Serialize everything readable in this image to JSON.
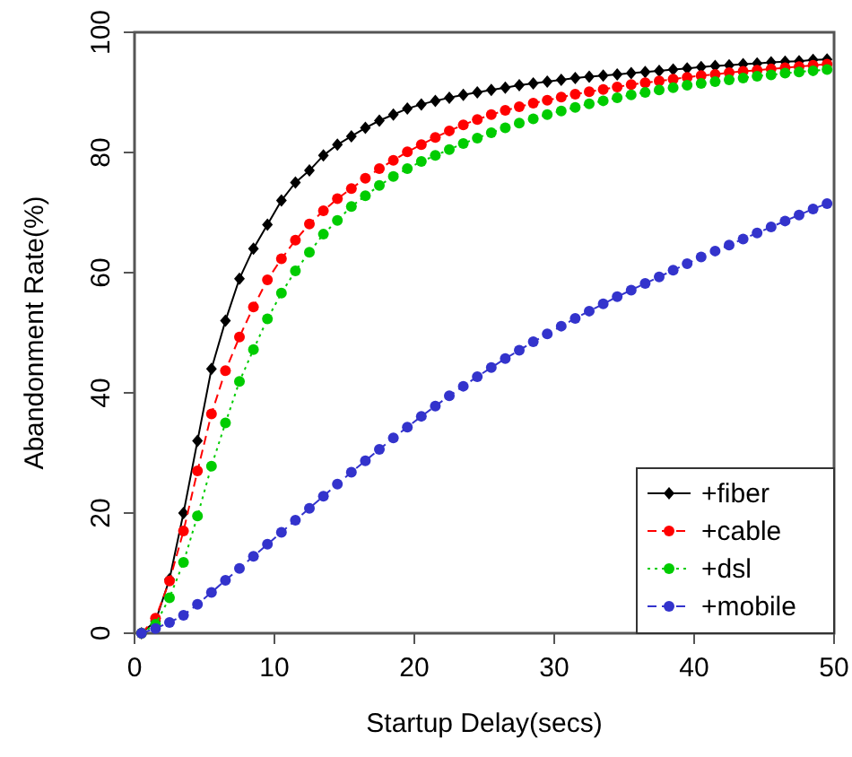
{
  "chart_data": {
    "type": "line",
    "xlabel": "Startup Delay(secs)",
    "ylabel": "Abandonment Rate(%)",
    "x": [
      0.5,
      1.5,
      2.5,
      3.5,
      4.5,
      5.5,
      6.5,
      7.5,
      8.5,
      9.5,
      10.5,
      11.5,
      12.5,
      13.5,
      14.5,
      15.5,
      16.5,
      17.5,
      18.5,
      19.5,
      20.5,
      21.5,
      22.5,
      23.5,
      24.5,
      25.5,
      26.5,
      27.5,
      28.5,
      29.5,
      30.5,
      31.5,
      32.5,
      33.5,
      34.5,
      35.5,
      36.5,
      37.5,
      38.5,
      39.5,
      40.5,
      41.5,
      42.5,
      43.5,
      44.5,
      45.5,
      46.5,
      47.5,
      48.5,
      49.5
    ],
    "series": [
      {
        "name": "+fiber",
        "color": "#000000",
        "marker": "diamond",
        "line_style": "solid",
        "values": [
          0,
          2,
          9,
          20,
          32,
          44,
          52,
          59,
          64,
          68,
          72,
          75,
          77,
          79.5,
          81.3,
          82.7,
          84.1,
          85.3,
          86.3,
          87.3,
          88,
          88.6,
          89.1,
          89.6,
          90,
          90.4,
          90.8,
          91.2,
          91.5,
          91.8,
          92.1,
          92.4,
          92.6,
          92.8,
          93,
          93.2,
          93.4,
          93.6,
          93.8,
          94,
          94.2,
          94.4,
          94.5,
          94.7,
          94.8,
          95,
          95.1,
          95.2,
          95.4,
          95.5
        ]
      },
      {
        "name": "+cable",
        "color": "#ff0000",
        "marker": "circle",
        "line_style": "dashed",
        "values": [
          0,
          2.5,
          8.7,
          17,
          27,
          36.5,
          43.7,
          49.3,
          54.3,
          58.8,
          62.3,
          65.4,
          68.1,
          70.3,
          72.3,
          74,
          75.7,
          77.3,
          78.7,
          80.1,
          81.3,
          82.5,
          83.6,
          84.6,
          85.5,
          86.3,
          87,
          87.6,
          88.2,
          88.7,
          89.2,
          89.7,
          90.1,
          90.5,
          90.9,
          91.3,
          91.6,
          91.9,
          92.2,
          92.5,
          92.8,
          93,
          93.3,
          93.5,
          93.7,
          93.9,
          94.1,
          94.3,
          94.5,
          94.7
        ]
      },
      {
        "name": "+dsl",
        "color": "#00cc00",
        "marker": "circle",
        "line_style": "dotted",
        "values": [
          0,
          1.5,
          5.9,
          11.8,
          19.5,
          27.8,
          35,
          41.9,
          47.2,
          52.3,
          56.6,
          60.3,
          63.4,
          66.4,
          68.7,
          71,
          72.8,
          74.5,
          76,
          77.3,
          78.5,
          79.5,
          80.5,
          81.5,
          82.4,
          83.3,
          84.1,
          84.9,
          85.6,
          86.3,
          86.9,
          87.5,
          88.1,
          88.6,
          89.1,
          89.6,
          90,
          90.4,
          90.8,
          91.2,
          91.5,
          91.8,
          92.1,
          92.4,
          92.7,
          92.9,
          93.2,
          93.4,
          93.6,
          93.8
        ]
      },
      {
        "name": "+mobile",
        "color": "#3333cc",
        "marker": "circle",
        "line_style": "dashed",
        "values": [
          0,
          0.8,
          1.8,
          3,
          4.8,
          6.8,
          8.8,
          10.8,
          12.8,
          14.8,
          16.8,
          18.8,
          20.8,
          22.8,
          24.8,
          26.8,
          28.7,
          30.6,
          32.5,
          34.3,
          36.1,
          37.8,
          39.5,
          41.1,
          42.7,
          44.2,
          45.7,
          47.1,
          48.5,
          49.8,
          51.1,
          52.4,
          53.6,
          54.8,
          56,
          57.1,
          58.2,
          59.3,
          60.4,
          61.5,
          62.6,
          63.6,
          64.6,
          65.6,
          66.6,
          67.6,
          68.6,
          69.6,
          70.6,
          71.5
        ]
      }
    ],
    "xlim": [
      0,
      50
    ],
    "xticks": [
      0,
      10,
      20,
      30,
      40,
      50
    ],
    "ylim": [
      0,
      100
    ],
    "yticks": [
      0,
      20,
      40,
      60,
      80,
      100
    ],
    "legend": "bottom right"
  }
}
